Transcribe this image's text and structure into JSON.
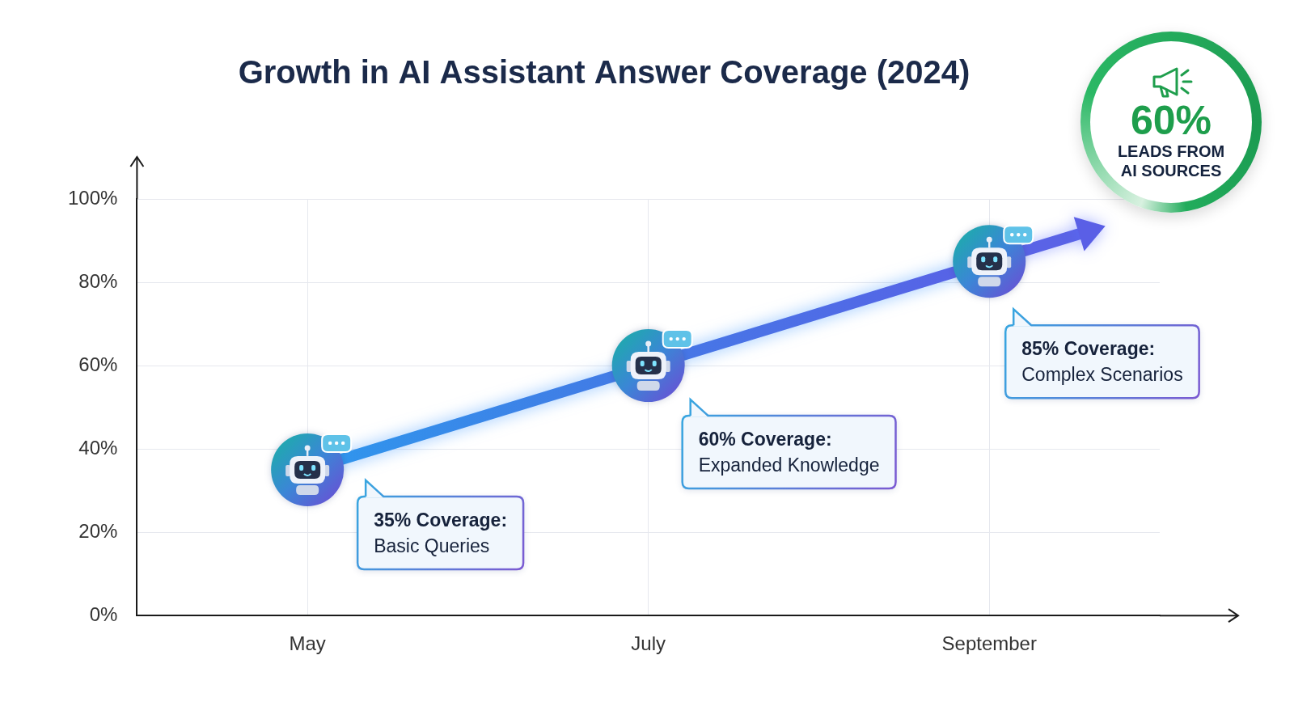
{
  "chart_data": {
    "type": "line",
    "title": "Growth in AI Assistant Answer Coverage (2024)",
    "categories": [
      "May",
      "July",
      "September"
    ],
    "values": [
      35,
      60,
      85
    ],
    "color": "#3f7fe6",
    "marker": "robot",
    "ylim": [
      0,
      100
    ],
    "yticks": [
      {
        "value": 0,
        "label": "0%"
      },
      {
        "value": 20,
        "label": "20%"
      },
      {
        "value": 40,
        "label": "40%"
      },
      {
        "value": 60,
        "label": "60%"
      },
      {
        "value": 80,
        "label": "80%"
      },
      {
        "value": 100,
        "label": "100%"
      }
    ],
    "grid": true,
    "annotations": [
      {
        "title": "35% Coverage:",
        "text": "Basic Queries"
      },
      {
        "title": "60% Coverage:",
        "text": "Expanded Knowledge"
      },
      {
        "title": "85% Coverage:",
        "text": "Complex Scenarios"
      }
    ],
    "badge": {
      "title": "60%",
      "text": "LEADS FROM AI SOURCES"
    }
  }
}
